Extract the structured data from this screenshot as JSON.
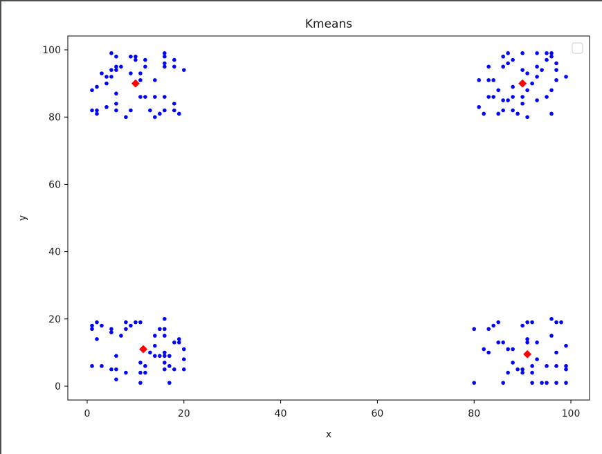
{
  "chart_data": {
    "type": "scatter",
    "title": "Kmeans",
    "xlabel": "x",
    "ylabel": "y",
    "xlim": [
      -4,
      104
    ],
    "ylim": [
      -4,
      104
    ],
    "xticks": [
      0,
      20,
      40,
      60,
      80,
      100
    ],
    "yticks": [
      0,
      20,
      40,
      60,
      80,
      100
    ],
    "grid": false,
    "legend": {
      "position": "upper right",
      "entries": []
    },
    "series": [
      {
        "name": "points",
        "color": "#0000ff",
        "marker": "circle",
        "points": [
          [
            5,
            99
          ],
          [
            6,
            98
          ],
          [
            9,
            98
          ],
          [
            10,
            98
          ],
          [
            10,
            97
          ],
          [
            12,
            97
          ],
          [
            16,
            99
          ],
          [
            16,
            98
          ],
          [
            18,
            97
          ],
          [
            6,
            95
          ],
          [
            7,
            95
          ],
          [
            5,
            94
          ],
          [
            6,
            94
          ],
          [
            12,
            95
          ],
          [
            16,
            96
          ],
          [
            16,
            95
          ],
          [
            18,
            95
          ],
          [
            20,
            94
          ],
          [
            3,
            93
          ],
          [
            4,
            92
          ],
          [
            5,
            92
          ],
          [
            9,
            93
          ],
          [
            11,
            93
          ],
          [
            11,
            91
          ],
          [
            4,
            90
          ],
          [
            2,
            89
          ],
          [
            1,
            88
          ],
          [
            14,
            91
          ],
          [
            6,
            87
          ],
          [
            6,
            84
          ],
          [
            11,
            86
          ],
          [
            12,
            86
          ],
          [
            14,
            86
          ],
          [
            16,
            86
          ],
          [
            18,
            84
          ],
          [
            1,
            82
          ],
          [
            2,
            82
          ],
          [
            2,
            81
          ],
          [
            4,
            83
          ],
          [
            6,
            82
          ],
          [
            9,
            82
          ],
          [
            8,
            80
          ],
          [
            13,
            82
          ],
          [
            16,
            82
          ],
          [
            15,
            81
          ],
          [
            14,
            80
          ],
          [
            18,
            82
          ],
          [
            19,
            81
          ],
          [
            87,
            99
          ],
          [
            86,
            98
          ],
          [
            90,
            99
          ],
          [
            93,
            99
          ],
          [
            95,
            99
          ],
          [
            96,
            99
          ],
          [
            96,
            98
          ],
          [
            88,
            97
          ],
          [
            87,
            96
          ],
          [
            86,
            95
          ],
          [
            83,
            95
          ],
          [
            95,
            97
          ],
          [
            97,
            96
          ],
          [
            93,
            95
          ],
          [
            90,
            94
          ],
          [
            91,
            93
          ],
          [
            94,
            94
          ],
          [
            97,
            94
          ],
          [
            93,
            92
          ],
          [
            99,
            92
          ],
          [
            81,
            91
          ],
          [
            83,
            91
          ],
          [
            84,
            91
          ],
          [
            97,
            91
          ],
          [
            92,
            90
          ],
          [
            88,
            89
          ],
          [
            91,
            88
          ],
          [
            85,
            88
          ],
          [
            96,
            88
          ],
          [
            83,
            86
          ],
          [
            84,
            86
          ],
          [
            88,
            86
          ],
          [
            90,
            86
          ],
          [
            95,
            86
          ],
          [
            86,
            85
          ],
          [
            87,
            85
          ],
          [
            93,
            85
          ],
          [
            90,
            84
          ],
          [
            81,
            83
          ],
          [
            82,
            81
          ],
          [
            86,
            82
          ],
          [
            88,
            82
          ],
          [
            85,
            81
          ],
          [
            89,
            81
          ],
          [
            91,
            80
          ],
          [
            96,
            81
          ],
          [
            16,
            20
          ],
          [
            2,
            19
          ],
          [
            1,
            18
          ],
          [
            1,
            17
          ],
          [
            3,
            18
          ],
          [
            8,
            19
          ],
          [
            10,
            19
          ],
          [
            11,
            19
          ],
          [
            9,
            18
          ],
          [
            8,
            17
          ],
          [
            5,
            17
          ],
          [
            5,
            16
          ],
          [
            7,
            15
          ],
          [
            15,
            17
          ],
          [
            16,
            17
          ],
          [
            14,
            15
          ],
          [
            16,
            15
          ],
          [
            2,
            14
          ],
          [
            19,
            14
          ],
          [
            18,
            13
          ],
          [
            19,
            13
          ],
          [
            14,
            12
          ],
          [
            20,
            11
          ],
          [
            13,
            10
          ],
          [
            14,
            9
          ],
          [
            15,
            9
          ],
          [
            16,
            10
          ],
          [
            16,
            9
          ],
          [
            17,
            9
          ],
          [
            6,
            9
          ],
          [
            20,
            8
          ],
          [
            1,
            6
          ],
          [
            3,
            6
          ],
          [
            11,
            7
          ],
          [
            12,
            6
          ],
          [
            16,
            7
          ],
          [
            17,
            6
          ],
          [
            5,
            5
          ],
          [
            6,
            5
          ],
          [
            16,
            5
          ],
          [
            18,
            5
          ],
          [
            20,
            5
          ],
          [
            8,
            4
          ],
          [
            11,
            4
          ],
          [
            12,
            4
          ],
          [
            6,
            2
          ],
          [
            11,
            1
          ],
          [
            17,
            1
          ],
          [
            96,
            20
          ],
          [
            97,
            19
          ],
          [
            98,
            19
          ],
          [
            85,
            19
          ],
          [
            84,
            18
          ],
          [
            83,
            17
          ],
          [
            80,
            17
          ],
          [
            91,
            19
          ],
          [
            92,
            19
          ],
          [
            90,
            18
          ],
          [
            96,
            15
          ],
          [
            85,
            13
          ],
          [
            86,
            13
          ],
          [
            91,
            14
          ],
          [
            91,
            13
          ],
          [
            93,
            13
          ],
          [
            99,
            12
          ],
          [
            82,
            11
          ],
          [
            83,
            10
          ],
          [
            87,
            11
          ],
          [
            88,
            11
          ],
          [
            97,
            10
          ],
          [
            93,
            8
          ],
          [
            88,
            7
          ],
          [
            92,
            6
          ],
          [
            95,
            6
          ],
          [
            97,
            6
          ],
          [
            99,
            6
          ],
          [
            99,
            5
          ],
          [
            89,
            5
          ],
          [
            90,
            5
          ],
          [
            90,
            4
          ],
          [
            87,
            4
          ],
          [
            92,
            4
          ],
          [
            80,
            1
          ],
          [
            86,
            1
          ],
          [
            92,
            1
          ],
          [
            94,
            1
          ],
          [
            95,
            1
          ],
          [
            97,
            1
          ],
          [
            99,
            1
          ]
        ]
      },
      {
        "name": "centroids",
        "color": "#ff0000",
        "marker": "diamond",
        "points": [
          [
            10,
            90
          ],
          [
            90,
            90
          ],
          [
            11.6,
            11
          ],
          [
            91,
            9.5
          ]
        ]
      }
    ]
  }
}
